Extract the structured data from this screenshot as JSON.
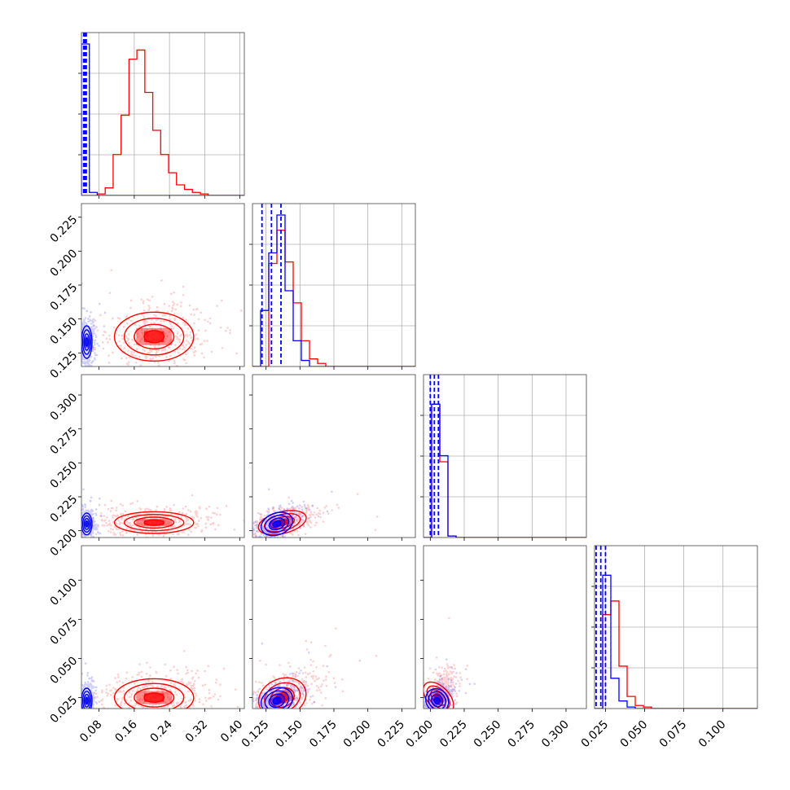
{
  "chart_data": {
    "type": "corner",
    "parameters": [
      {
        "range": [
          0.04,
          0.41
        ],
        "ticks": [
          0.08,
          0.16,
          0.24,
          0.32,
          0.4
        ],
        "tick_labels": [
          "0.08",
          "0.16",
          "0.24",
          "0.32",
          "0.40"
        ]
      },
      {
        "range": [
          0.115,
          0.235
        ],
        "ticks": [
          0.125,
          0.15,
          0.175,
          0.2,
          0.225
        ],
        "tick_labels": [
          "0.125",
          "0.150",
          "0.175",
          "0.200",
          "0.225"
        ]
      },
      {
        "range": [
          0.195,
          0.315
        ],
        "ticks": [
          0.2,
          0.225,
          0.25,
          0.275,
          0.3
        ],
        "tick_labels": [
          "0.200",
          "0.225",
          "0.250",
          "0.275",
          "0.300"
        ]
      },
      {
        "range": [
          0.018,
          0.122
        ],
        "ticks": [
          0.025,
          0.05,
          0.075,
          0.1
        ],
        "tick_labels": [
          "0.025",
          "0.050",
          "0.075",
          "0.100"
        ]
      }
    ],
    "series": [
      {
        "color": "#ff0000",
        "means": [
          0.205,
          0.137,
          0.206,
          0.025
        ],
        "sds": [
          0.045,
          0.009,
          0.004,
          0.006
        ],
        "histograms": [
          {
            "bin_start": 0.04,
            "bin_width": 0.018,
            "counts": [
              0,
              0,
              0.01,
              0.05,
              0.27,
              0.53,
              0.9,
              0.96,
              0.68,
              0.43,
              0.27,
              0.15,
              0.07,
              0.04,
              0.02,
              0.01,
              0
            ]
          },
          {
            "bin_start": 0.115,
            "bin_width": 0.006,
            "counts": [
              0,
              0,
              0.68,
              0.9,
              0.69,
              0.42,
              0.17,
              0.05,
              0.02,
              0,
              0,
              0,
              0,
              0,
              0,
              0,
              0,
              0,
              0,
              0
            ]
          },
          {
            "bin_start": 0.195,
            "bin_width": 0.006,
            "counts": [
              0,
              0.88,
              0.5,
              0.01,
              0,
              0,
              0,
              0,
              0,
              0,
              0,
              0,
              0,
              0,
              0,
              0,
              0,
              0,
              0,
              0
            ]
          },
          {
            "bin_start": 0.018,
            "bin_width": 0.0052,
            "counts": [
              0,
              0.62,
              0.71,
              0.28,
              0.08,
              0.02,
              0.01,
              0,
              0,
              0,
              0,
              0,
              0,
              0,
              0,
              0,
              0,
              0,
              0,
              0
            ]
          }
        ]
      },
      {
        "color": "#0000ff",
        "means": [
          0.052,
          0.133,
          0.205,
          0.023
        ],
        "sds": [
          0.006,
          0.006,
          0.004,
          0.004
        ],
        "histograms": [
          {
            "bin_start": 0.04,
            "bin_width": 0.018,
            "counts": [
              1.0,
              0.02,
              0
            ]
          },
          {
            "bin_start": 0.115,
            "bin_width": 0.006,
            "counts": [
              0,
              0.37,
              0.75,
              1.0,
              0.5,
              0.17,
              0.04,
              0,
              0,
              0,
              0,
              0,
              0,
              0,
              0,
              0,
              0,
              0,
              0,
              0
            ]
          },
          {
            "bin_start": 0.195,
            "bin_width": 0.006,
            "counts": [
              0,
              0.88,
              0.54,
              0.01,
              0,
              0,
              0,
              0,
              0,
              0,
              0,
              0,
              0,
              0,
              0,
              0,
              0,
              0,
              0,
              0
            ]
          },
          {
            "bin_start": 0.018,
            "bin_width": 0.0052,
            "counts": [
              0,
              0.88,
              0.2,
              0.05,
              0.01,
              0,
              0,
              0,
              0,
              0,
              0,
              0,
              0,
              0,
              0,
              0,
              0,
              0,
              0,
              0
            ]
          }
        ],
        "quantile_lines": [
          [
            0.045,
            0.048,
            0.051
          ],
          [
            0.122,
            0.129,
            0.136
          ],
          [
            0.2,
            0.203,
            0.206
          ],
          [
            0.019,
            0.022,
            0.025
          ]
        ]
      }
    ],
    "grid": true,
    "contour_levels": [
      0.5,
      1.0,
      1.5,
      2.0
    ],
    "scatter_points_per_panel": 450
  }
}
